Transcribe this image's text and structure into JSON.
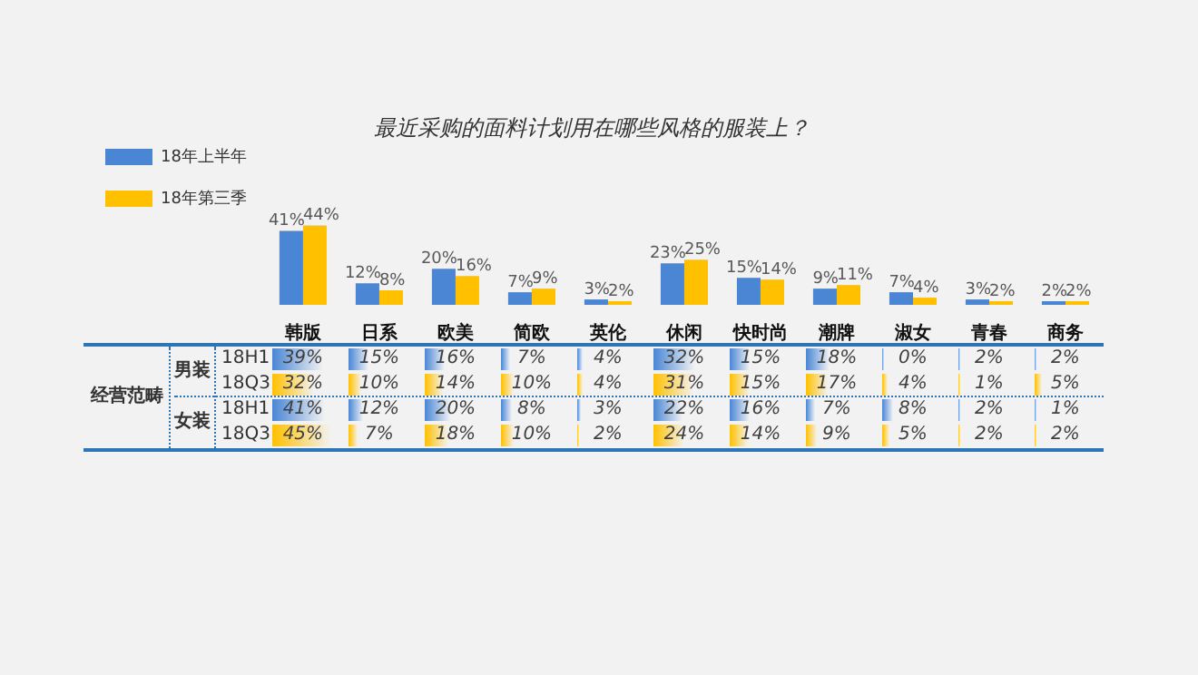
{
  "chart_data": [
    {
      "type": "bar",
      "title": "最近采购的面料计划用在哪些风格的服装上？",
      "categories": [
        "韩版",
        "日系",
        "欧美",
        "简欧",
        "英伦",
        "休闲",
        "快时尚",
        "潮牌",
        "淑女",
        "青春",
        "商务"
      ],
      "legend": "left",
      "series": [
        {
          "name": "18年上半年",
          "color": "#4a86d4",
          "values": [
            41,
            12,
            20,
            7,
            3,
            23,
            15,
            9,
            7,
            3,
            2
          ],
          "value_labels": [
            "41%",
            "12%",
            "20%",
            "7%",
            "3%",
            "23%",
            "15%",
            "9%",
            "7%",
            "3%",
            "2%"
          ]
        },
        {
          "name": "18年第三季",
          "color": "#ffc000",
          "values": [
            44,
            8,
            16,
            9,
            2,
            25,
            14,
            11,
            4,
            2,
            2
          ],
          "value_labels": [
            "44%",
            "8%",
            "16%",
            "9%",
            "2%",
            "25%",
            "14%",
            "11%",
            "4%",
            "2%",
            "2%"
          ]
        }
      ]
    },
    {
      "type": "heatmap",
      "tick_labels": "y",
      "categories": [
        "韩版",
        "日系",
        "欧美",
        "简欧",
        "英伦",
        "休闲",
        "快时尚",
        "潮牌",
        "淑女",
        "青春",
        "商务"
      ],
      "y_categories": [
        "18H1",
        "18Q3",
        "18H1",
        "18Q3"
      ],
      "cells": [
        [
          39,
          15,
          16,
          7,
          4,
          32,
          15,
          18,
          0,
          2,
          2
        ],
        [
          32,
          10,
          14,
          10,
          4,
          31,
          15,
          17,
          4,
          1,
          5
        ],
        [
          41,
          12,
          20,
          8,
          3,
          22,
          16,
          7,
          8,
          2,
          1
        ],
        [
          45,
          7,
          18,
          10,
          2,
          24,
          14,
          9,
          5,
          2,
          2
        ]
      ],
      "cell_labels": [
        [
          "39%",
          "15%",
          "16%",
          "7%",
          "4%",
          "32%",
          "15%",
          "18%",
          "0%",
          "2%",
          "2%"
        ],
        [
          "32%",
          "10%",
          "14%",
          "10%",
          "4%",
          "31%",
          "15%",
          "17%",
          "4%",
          "1%",
          "5%"
        ],
        [
          "41%",
          "12%",
          "20%",
          "8%",
          "3%",
          "22%",
          "16%",
          "7%",
          "8%",
          "2%",
          "1%"
        ],
        [
          "45%",
          "7%",
          "18%",
          "10%",
          "2%",
          "24%",
          "14%",
          "9%",
          "5%",
          "2%",
          "2%"
        ]
      ],
      "annotations": [
        "经营范畴",
        "男装",
        "女装"
      ]
    }
  ]
}
